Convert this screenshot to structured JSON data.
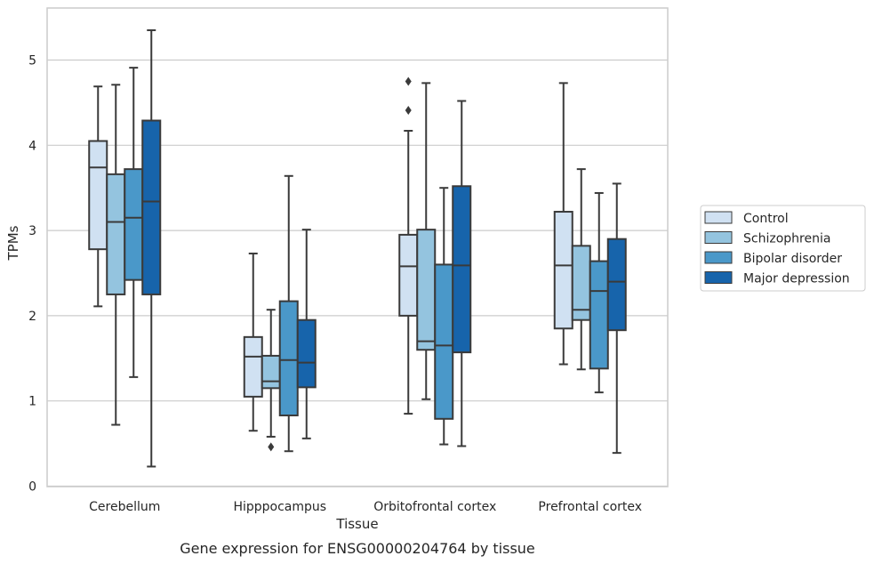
{
  "caption": "Gene expression for ENSG00000204764 by tissue",
  "chart_data": {
    "type": "box",
    "title": "",
    "xlabel": "Tissue",
    "ylabel": "TPMs",
    "ylim": [
      0,
      5.6
    ],
    "yticks": [
      0,
      1,
      2,
      3,
      4,
      5
    ],
    "grid": "horizontal",
    "legend_position": "right",
    "categories": [
      "Cerebellum",
      "Hipppocampus",
      "Orbitofrontal cortex",
      "Prefrontal cortex"
    ],
    "series": [
      {
        "name": "Control",
        "color": "#d0e1f2",
        "boxes": [
          {
            "whisker_low": 2.11,
            "q1": 2.78,
            "median": 3.74,
            "q3": 4.05,
            "whisker_high": 4.69,
            "outliers": []
          },
          {
            "whisker_low": 0.65,
            "q1": 1.05,
            "median": 1.52,
            "q3": 1.75,
            "whisker_high": 2.73,
            "outliers": []
          },
          {
            "whisker_low": 0.85,
            "q1": 2.0,
            "median": 2.58,
            "q3": 2.95,
            "whisker_high": 4.17,
            "outliers": [
              4.41,
              4.75
            ]
          },
          {
            "whisker_low": 1.43,
            "q1": 1.85,
            "median": 2.59,
            "q3": 3.22,
            "whisker_high": 4.73,
            "outliers": []
          }
        ]
      },
      {
        "name": "Schizophrenia",
        "color": "#94c4df",
        "boxes": [
          {
            "whisker_low": 0.72,
            "q1": 2.25,
            "median": 3.1,
            "q3": 3.66,
            "whisker_high": 4.71,
            "outliers": []
          },
          {
            "whisker_low": 0.58,
            "q1": 1.15,
            "median": 1.23,
            "q3": 1.53,
            "whisker_high": 2.07,
            "outliers": [
              0.46
            ]
          },
          {
            "whisker_low": 1.02,
            "q1": 1.6,
            "median": 1.7,
            "q3": 3.01,
            "whisker_high": 4.73,
            "outliers": []
          },
          {
            "whisker_low": 1.37,
            "q1": 1.95,
            "median": 2.07,
            "q3": 2.82,
            "whisker_high": 3.72,
            "outliers": []
          }
        ]
      },
      {
        "name": "Bipolar disorder",
        "color": "#4a98c9",
        "boxes": [
          {
            "whisker_low": 1.28,
            "q1": 2.42,
            "median": 3.15,
            "q3": 3.72,
            "whisker_high": 4.91,
            "outliers": []
          },
          {
            "whisker_low": 0.41,
            "q1": 0.83,
            "median": 1.48,
            "q3": 2.17,
            "whisker_high": 3.64,
            "outliers": []
          },
          {
            "whisker_low": 0.49,
            "q1": 0.79,
            "median": 1.65,
            "q3": 2.6,
            "whisker_high": 3.5,
            "outliers": []
          },
          {
            "whisker_low": 1.1,
            "q1": 1.38,
            "median": 2.29,
            "q3": 2.64,
            "whisker_high": 3.44,
            "outliers": []
          }
        ]
      },
      {
        "name": "Major depression",
        "color": "#1764ab",
        "boxes": [
          {
            "whisker_low": 0.23,
            "q1": 2.25,
            "median": 3.34,
            "q3": 4.29,
            "whisker_high": 5.35,
            "outliers": []
          },
          {
            "whisker_low": 0.56,
            "q1": 1.16,
            "median": 1.45,
            "q3": 1.95,
            "whisker_high": 3.01,
            "outliers": []
          },
          {
            "whisker_low": 0.47,
            "q1": 1.57,
            "median": 2.59,
            "q3": 3.52,
            "whisker_high": 4.52,
            "outliers": []
          },
          {
            "whisker_low": 0.39,
            "q1": 1.83,
            "median": 2.4,
            "q3": 2.9,
            "whisker_high": 3.55,
            "outliers": []
          }
        ]
      }
    ]
  }
}
